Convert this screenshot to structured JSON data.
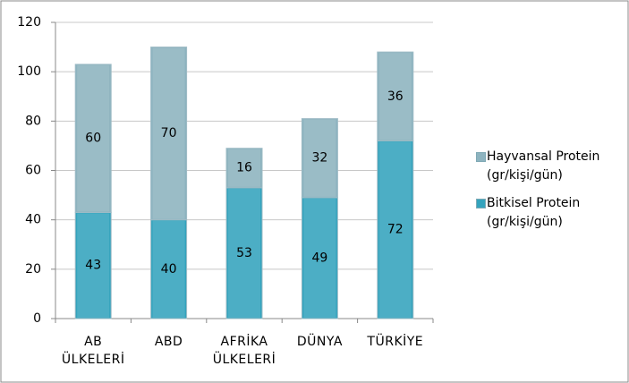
{
  "chart_data": {
    "type": "stacked_bar",
    "categories": [
      "AB ÜLKELERİ",
      "ABD",
      "AFRİKA ÜLKELERİ",
      "DÜNYA",
      "TÜRKİYE"
    ],
    "series": [
      {
        "name": "Bitkisel Protein (gr/kişi/gün)",
        "color": "#34a3bd",
        "values": [
          43,
          40,
          53,
          49,
          72
        ]
      },
      {
        "name": "Hayvansal Protein (gr/kişi/gün)",
        "color": "#8db3bf",
        "values": [
          60,
          70,
          16,
          32,
          36
        ]
      }
    ],
    "ylim": [
      0,
      120
    ],
    "yticks": [
      0,
      20,
      40,
      60,
      80,
      100,
      120
    ],
    "grid": true,
    "legend": "right"
  }
}
